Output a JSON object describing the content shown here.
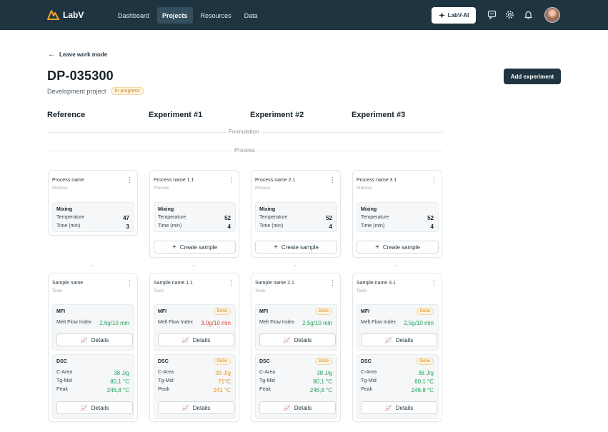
{
  "app": {
    "name": "LabV"
  },
  "nav": [
    {
      "label": "Dashboard"
    },
    {
      "label": "Projects"
    },
    {
      "label": "Resources"
    },
    {
      "label": "Data"
    }
  ],
  "ai_button": {
    "label": "LabV-AI"
  },
  "back_link": "Leave work mode",
  "project": {
    "id": "DP-035300",
    "type": "Development project",
    "status": "In progress"
  },
  "add_experiment": "Add experiment",
  "columns": [
    "Reference",
    "Experiment #1",
    "Experiment #2",
    "Experiment #3"
  ],
  "dividers": {
    "formulation": "Formulation",
    "process": "Process"
  },
  "create_sample_label": "Create sample",
  "process_cards": [
    {
      "name": "Process name",
      "sub": "Process",
      "section": "Mixing",
      "rows": [
        {
          "label": "Temperature",
          "value": "47"
        },
        {
          "label": "Time (min)",
          "value": "3"
        }
      ]
    },
    {
      "name": "Process name 1.1",
      "sub": "Process",
      "section": "Mixing",
      "rows": [
        {
          "label": "Temperature",
          "value": "52"
        },
        {
          "label": "Time (min)",
          "value": "4"
        }
      ]
    },
    {
      "name": "Process name 2.1",
      "sub": "Process",
      "section": "Mixing",
      "rows": [
        {
          "label": "Temperature",
          "value": "52"
        },
        {
          "label": "Time (min)",
          "value": "4"
        }
      ]
    },
    {
      "name": "Process name 3.1",
      "sub": "Process",
      "section": "Mixing",
      "rows": [
        {
          "label": "Temperature",
          "value": "52"
        },
        {
          "label": "Time (min)",
          "value": "4"
        }
      ]
    }
  ],
  "sample_cards": [
    {
      "name": "Sample name",
      "sub": "Tests",
      "mfi": {
        "title": "MFI",
        "label": "Melt Flow Index",
        "value": "2,6g/10 min"
      },
      "dsc": {
        "title": "DSC",
        "rows": [
          {
            "label": "C-Area",
            "value": "38 J/g"
          },
          {
            "label": "Tg-Mid",
            "value": "80,1 °C"
          },
          {
            "label": "Peak",
            "value": "246,8 °C"
          }
        ]
      }
    },
    {
      "name": "Sample name 1.1",
      "sub": "Tests",
      "mfi": {
        "title": "MFI",
        "status": "Done",
        "label": "Melt Flow Index",
        "value": "3,0g/10 min"
      },
      "dsc": {
        "title": "DSC",
        "status": "Done",
        "rows": [
          {
            "label": "C-Area",
            "value": "39 J/g"
          },
          {
            "label": "Tg-Mid",
            "value": "71°C"
          },
          {
            "label": "Peak",
            "value": "241 °C"
          }
        ]
      }
    },
    {
      "name": "Sample name 2.1",
      "sub": "Tests",
      "mfi": {
        "title": "MFI",
        "status": "Done",
        "label": "Melt Flow Index",
        "value": "2,5g/10 min"
      },
      "dsc": {
        "title": "DSC",
        "status": "Done",
        "rows": [
          {
            "label": "C-Area",
            "value": "38 J/g"
          },
          {
            "label": "Tg-Mid",
            "value": "80,1 °C"
          },
          {
            "label": "Peak",
            "value": "246,8 °C"
          }
        ]
      }
    },
    {
      "name": "Sample name 3.1",
      "sub": "Tests",
      "mfi": {
        "title": "MFI",
        "status": "Done",
        "label": "Melt Flow Index",
        "value": "2,5g/10 min"
      },
      "dsc": {
        "title": "DSC",
        "status": "Done",
        "rows": [
          {
            "label": "C-Area",
            "value": "38 J/g"
          },
          {
            "label": "Tg-Mid",
            "value": "80,1 °C"
          },
          {
            "label": "Peak",
            "value": "246,8 °C"
          }
        ]
      }
    }
  ],
  "details_label": "Details",
  "colors": {
    "navbar": "#1f3441",
    "good": "#21a35d",
    "bad": "#e0483a",
    "warn": "#e8961a",
    "badge": "#d58a13"
  }
}
